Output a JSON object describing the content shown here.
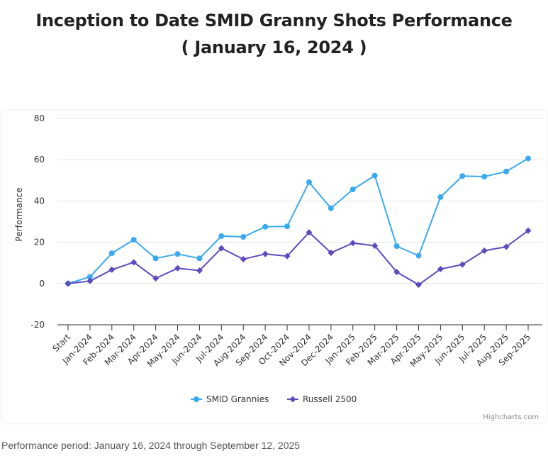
{
  "header": {
    "title_line1": "Inception to Date SMID Granny Shots Performance",
    "title_line2": "( January 16, 2024 )"
  },
  "footer": {
    "note": "Performance period: January 16, 2024 through September 12, 2025"
  },
  "credit": "Highcharts.com",
  "colors": {
    "smid": "#3aaaf0",
    "russell": "#5b4bbd",
    "grid": "#e6e6e6",
    "axis": "#333333"
  },
  "chart_data": {
    "type": "line",
    "title": "Inception to Date SMID Granny Shots Performance",
    "subtitle": "( January 16, 2024 )",
    "xlabel": "",
    "ylabel": "Performance",
    "ylim": [
      -20,
      80
    ],
    "yticks": [
      -20,
      0,
      20,
      40,
      60,
      80
    ],
    "grid": true,
    "legend": "bottom-center",
    "categories": [
      "Start",
      "Jan-2024",
      "Feb-2024",
      "Mar-2024",
      "Apr-2024",
      "May-2024",
      "Jun-2024",
      "Jul-2024",
      "Aug-2024",
      "Sep-2024",
      "Oct-2024",
      "Nov-2024",
      "Dec-2024",
      "Jan-2025",
      "Feb-2025",
      "Mar-2025",
      "Apr-2025",
      "May-2025",
      "Jun-2025",
      "Jul-2025",
      "Aug-2025",
      "Sep-2025"
    ],
    "series": [
      {
        "name": "SMID Grannies",
        "marker": "circle",
        "values": [
          0,
          3.2,
          14.7,
          21.2,
          12.2,
          14.3,
          12.2,
          23.0,
          22.6,
          27.5,
          27.7,
          49.1,
          36.5,
          45.6,
          52.3,
          18.1,
          13.5,
          41.9,
          52.1,
          51.8,
          54.3,
          60.6
        ]
      },
      {
        "name": "Russell 2500",
        "marker": "diamond",
        "values": [
          0,
          1.2,
          6.7,
          10.3,
          2.5,
          7.4,
          6.3,
          17.1,
          11.8,
          14.3,
          13.3,
          24.8,
          14.9,
          19.6,
          18.3,
          5.6,
          -0.6,
          7.0,
          9.2,
          15.9,
          17.8,
          25.6
        ]
      }
    ]
  }
}
